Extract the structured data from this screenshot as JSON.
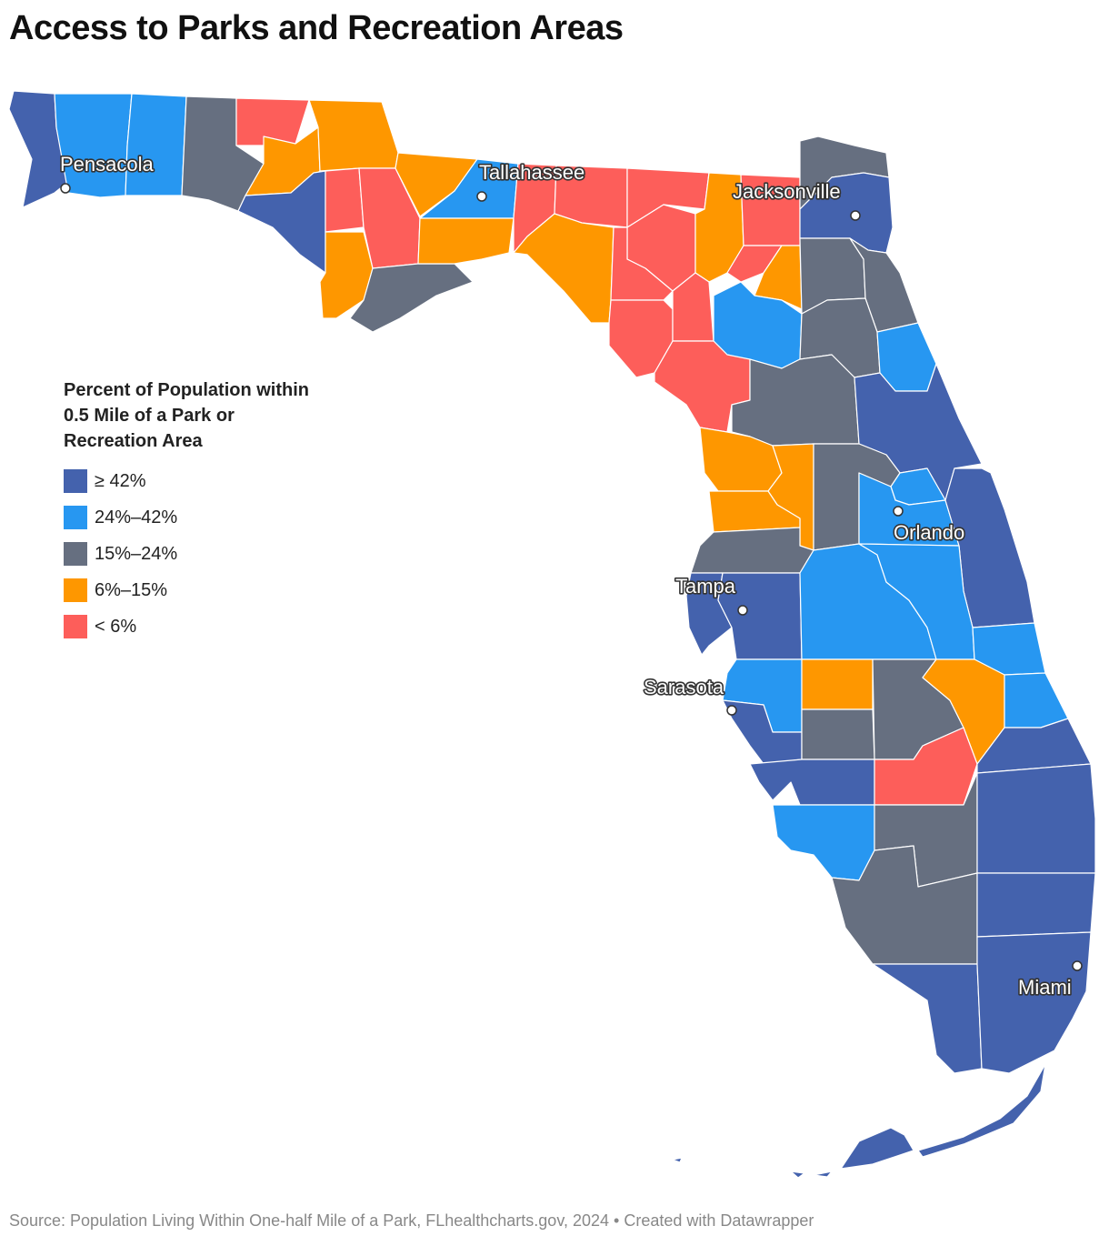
{
  "title": "Access to Parks and Recreation Areas",
  "legend": {
    "title_lines": [
      "Percent of Population within",
      "0.5 Mile of a Park or",
      "Recreation Area"
    ],
    "items": [
      {
        "label": "≥ 42%",
        "color": "#4462ad"
      },
      {
        "label": "24%–42%",
        "color": "#2797f1"
      },
      {
        "label": "15%–24%",
        "color": "#666f80"
      },
      {
        "label": "6%–15%",
        "color": "#fe9700"
      },
      {
        "label": "< 6%",
        "color": "#fd5e5a"
      }
    ]
  },
  "cities": [
    {
      "name": "Pensacola"
    },
    {
      "name": "Tallahassee"
    },
    {
      "name": "Jacksonville"
    },
    {
      "name": "Orlando"
    },
    {
      "name": "Tampa"
    },
    {
      "name": "Sarasota"
    },
    {
      "name": "Miami"
    }
  ],
  "footer": "Source: Population Living Within One-half Mile of a Park, FLhealthcharts.gov, 2024 • Created with Datawrapper"
}
